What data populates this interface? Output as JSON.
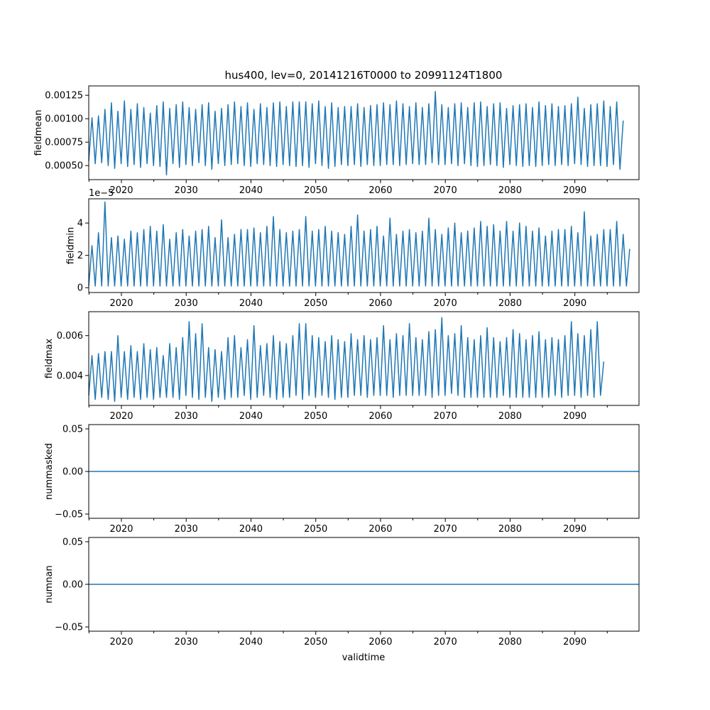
{
  "figure": {
    "title": "hus400, lev=0, 20141216T0000 to 20991124T1800",
    "xlabel": "validtime"
  },
  "colors": {
    "series": "#1f77b4"
  },
  "chart_data": [
    {
      "type": "line",
      "ylabel": "fieldmean",
      "scale_note": "",
      "xlim": [
        2014.96,
        2099.9
      ],
      "ylim": [
        0.00035,
        0.00135
      ],
      "x_ticks": [
        2020,
        2030,
        2040,
        2050,
        2060,
        2070,
        2080,
        2090
      ],
      "x_tick_labels": [
        "2020",
        "2030",
        "2040",
        "2050",
        "2060",
        "2070",
        "2080",
        "2090"
      ],
      "y_ticks": [
        0.0005,
        0.00075,
        0.001,
        0.00125
      ],
      "y_tick_labels": [
        "0.00050",
        "0.00075",
        "0.00100",
        "0.00125"
      ],
      "series": [
        {
          "x_start": 2014.96,
          "x_step": 0.5,
          "values_y": [
            0.00055,
            0.00101,
            0.00052,
            0.00103,
            0.00053,
            0.0011,
            0.0005,
            0.00117,
            0.00047,
            0.00108,
            0.00052,
            0.00119,
            0.00049,
            0.0011,
            0.00051,
            0.00116,
            0.00048,
            0.00112,
            0.00052,
            0.00106,
            0.0005,
            0.00114,
            0.00049,
            0.00118,
            0.0004,
            0.00111,
            0.00052,
            0.00115,
            0.00048,
            0.00118,
            0.00051,
            0.00112,
            0.0005,
            0.0011,
            0.00053,
            0.00115,
            0.0005,
            0.00117,
            0.00046,
            0.00108,
            0.00052,
            0.00111,
            0.0005,
            0.00115,
            0.00051,
            0.00118,
            0.00052,
            0.00113,
            0.0005,
            0.00117,
            0.00049,
            0.0011,
            0.00052,
            0.00116,
            0.00051,
            0.00112,
            0.0005,
            0.00117,
            0.00049,
            0.00118,
            0.00051,
            0.00113,
            0.0005,
            0.00118,
            0.00049,
            0.00118,
            0.0005,
            0.00118,
            0.00048,
            0.00116,
            0.00052,
            0.00119,
            0.0005,
            0.00113,
            0.00047,
            0.00117,
            0.00049,
            0.00112,
            0.00051,
            0.00113,
            0.0005,
            0.00113,
            0.00051,
            0.00116,
            0.00049,
            0.00112,
            0.00051,
            0.00114,
            0.0005,
            0.00115,
            0.0005,
            0.00117,
            0.00051,
            0.00115,
            0.00051,
            0.00119,
            0.0005,
            0.00116,
            0.00051,
            0.00113,
            0.00052,
            0.00117,
            0.00051,
            0.00112,
            0.00051,
            0.00116,
            0.00053,
            0.00129,
            0.00051,
            0.00115,
            0.00051,
            0.00112,
            0.00052,
            0.00116,
            0.0005,
            0.00117,
            0.00052,
            0.00112,
            0.0005,
            0.00117,
            0.00049,
            0.00118,
            0.0005,
            0.00113,
            0.00051,
            0.00116,
            0.0005,
            0.00117,
            0.00048,
            0.00111,
            0.00051,
            0.00114,
            0.0005,
            0.00115,
            0.00049,
            0.00116,
            0.0005,
            0.00112,
            0.00049,
            0.00118,
            0.0005,
            0.00114,
            0.00051,
            0.00116,
            0.0005,
            0.00113,
            0.00051,
            0.00114,
            0.0005,
            0.00116,
            0.00052,
            0.00123,
            0.00051,
            0.00111,
            0.00049,
            0.00115,
            0.0005,
            0.00116,
            0.0005,
            0.00119,
            0.00049,
            0.00113,
            0.00051,
            0.00118,
            0.00046,
            0.00098
          ]
        }
      ]
    },
    {
      "type": "line",
      "ylabel": "fieldmin",
      "scale_note": "1e−5",
      "xlim": [
        2014.96,
        2099.9
      ],
      "ylim": [
        -0.3,
        5.5
      ],
      "x_ticks": [
        2020,
        2030,
        2040,
        2050,
        2060,
        2070,
        2080,
        2090
      ],
      "x_tick_labels": [
        "2020",
        "2030",
        "2040",
        "2050",
        "2060",
        "2070",
        "2080",
        "2090"
      ],
      "y_ticks": [
        0,
        2,
        4
      ],
      "y_tick_labels": [
        "0",
        "2",
        "4"
      ],
      "series": [
        {
          "x_start": 2014.96,
          "x_step": 0.5,
          "values_y": [
            0.1,
            2.6,
            0.1,
            3.4,
            0.1,
            5.3,
            0.1,
            3.1,
            0.1,
            3.2,
            0.1,
            3.0,
            0.1,
            3.5,
            0.1,
            3.4,
            0.1,
            3.6,
            0.1,
            3.8,
            0.1,
            3.5,
            0.1,
            3.9,
            0.1,
            3.0,
            0.1,
            3.4,
            0.1,
            3.6,
            0.1,
            3.2,
            0.1,
            3.5,
            0.1,
            3.6,
            0.1,
            3.8,
            0.1,
            3.1,
            0.1,
            4.2,
            0.1,
            3.1,
            0.1,
            3.3,
            0.1,
            3.6,
            0.1,
            3.6,
            0.1,
            3.7,
            0.1,
            3.4,
            0.1,
            3.8,
            0.1,
            4.4,
            0.1,
            3.6,
            0.1,
            3.4,
            0.1,
            3.5,
            0.1,
            3.6,
            0.1,
            4.4,
            0.1,
            3.5,
            0.1,
            3.6,
            0.1,
            3.8,
            0.1,
            3.5,
            0.1,
            3.4,
            0.1,
            3.3,
            0.1,
            3.8,
            0.1,
            4.5,
            0.1,
            3.5,
            0.1,
            3.6,
            0.1,
            3.8,
            0.1,
            3.2,
            0.1,
            4.3,
            0.1,
            3.3,
            0.1,
            3.5,
            0.1,
            3.6,
            0.1,
            3.4,
            0.1,
            3.5,
            0.1,
            4.3,
            0.1,
            3.6,
            0.1,
            3.3,
            0.1,
            3.7,
            0.1,
            4.0,
            0.1,
            3.4,
            0.1,
            3.5,
            0.1,
            3.7,
            0.1,
            4.1,
            0.1,
            3.8,
            0.1,
            3.9,
            0.1,
            3.5,
            0.1,
            4.1,
            0.1,
            3.5,
            0.1,
            4.0,
            0.1,
            3.8,
            0.1,
            3.5,
            0.1,
            3.7,
            0.1,
            3.2,
            0.1,
            3.5,
            0.1,
            3.6,
            0.1,
            3.6,
            0.1,
            3.8,
            0.1,
            3.4,
            0.1,
            4.7,
            0.1,
            3.2,
            0.1,
            3.3,
            0.1,
            3.6,
            0.1,
            3.6,
            0.1,
            4.1,
            0.1,
            3.3,
            0.1,
            2.4
          ]
        }
      ]
    },
    {
      "type": "line",
      "ylabel": "fieldmax",
      "scale_note": "",
      "xlim": [
        2014.96,
        2099.9
      ],
      "ylim": [
        0.0025,
        0.0072
      ],
      "x_ticks": [
        2020,
        2030,
        2040,
        2050,
        2060,
        2070,
        2080,
        2090
      ],
      "x_tick_labels": [
        "2020",
        "2030",
        "2040",
        "2050",
        "2060",
        "2070",
        "2080",
        "2090"
      ],
      "y_ticks": [
        0.004,
        0.006
      ],
      "y_tick_labels": [
        "0.004",
        "0.006"
      ],
      "series": [
        {
          "x_start": 2014.96,
          "x_step": 0.5,
          "values_y": [
            0.003,
            0.005,
            0.0028,
            0.0051,
            0.0029,
            0.0052,
            0.0028,
            0.0052,
            0.0027,
            0.006,
            0.0029,
            0.0052,
            0.0028,
            0.0055,
            0.0029,
            0.0052,
            0.0028,
            0.0056,
            0.0029,
            0.0053,
            0.0028,
            0.0054,
            0.0029,
            0.005,
            0.0029,
            0.0056,
            0.0029,
            0.0054,
            0.0028,
            0.0059,
            0.003,
            0.0067,
            0.0029,
            0.0061,
            0.0028,
            0.0066,
            0.0029,
            0.0054,
            0.0027,
            0.0053,
            0.0029,
            0.0052,
            0.0028,
            0.0059,
            0.0029,
            0.006,
            0.0029,
            0.0054,
            0.003,
            0.0058,
            0.0028,
            0.0065,
            0.0029,
            0.0055,
            0.003,
            0.0056,
            0.0029,
            0.006,
            0.0028,
            0.0057,
            0.0029,
            0.0056,
            0.0029,
            0.006,
            0.003,
            0.0066,
            0.0028,
            0.0066,
            0.003,
            0.006,
            0.0029,
            0.0059,
            0.003,
            0.0057,
            0.0029,
            0.006,
            0.0028,
            0.0058,
            0.0029,
            0.0057,
            0.0029,
            0.0061,
            0.003,
            0.0058,
            0.003,
            0.006,
            0.0029,
            0.0058,
            0.003,
            0.0059,
            0.003,
            0.0065,
            0.003,
            0.0058,
            0.0029,
            0.0061,
            0.003,
            0.006,
            0.003,
            0.0066,
            0.003,
            0.0059,
            0.003,
            0.0058,
            0.003,
            0.0062,
            0.0029,
            0.0063,
            0.003,
            0.0069,
            0.003,
            0.006,
            0.0031,
            0.0061,
            0.003,
            0.0065,
            0.0029,
            0.0059,
            0.0029,
            0.0058,
            0.0029,
            0.006,
            0.0029,
            0.0064,
            0.0029,
            0.0059,
            0.0029,
            0.0057,
            0.003,
            0.0059,
            0.0029,
            0.0063,
            0.0029,
            0.0061,
            0.0029,
            0.0058,
            0.0029,
            0.006,
            0.0029,
            0.0062,
            0.0029,
            0.0058,
            0.0029,
            0.0059,
            0.003,
            0.0058,
            0.0029,
            0.006,
            0.003,
            0.0067,
            0.003,
            0.0061,
            0.0029,
            0.006,
            0.003,
            0.0063,
            0.0029,
            0.0067,
            0.003,
            0.0047
          ]
        }
      ]
    },
    {
      "type": "line",
      "ylabel": "nummasked",
      "scale_note": "",
      "xlim": [
        2014.96,
        2099.9
      ],
      "ylim": [
        -0.055,
        0.055
      ],
      "x_ticks": [
        2020,
        2030,
        2040,
        2050,
        2060,
        2070,
        2080,
        2090
      ],
      "x_tick_labels": [
        "2020",
        "2030",
        "2040",
        "2050",
        "2060",
        "2070",
        "2080",
        "2090"
      ],
      "y_ticks": [
        -0.05,
        0.0,
        0.05
      ],
      "y_tick_labels": [
        "−0.05",
        "0.00",
        "0.05"
      ],
      "series": [
        {
          "x": [
            2014.96,
            2099.9
          ],
          "y": [
            0,
            0
          ]
        }
      ]
    },
    {
      "type": "line",
      "ylabel": "numnan",
      "scale_note": "",
      "xlim": [
        2014.96,
        2099.9
      ],
      "ylim": [
        -0.055,
        0.055
      ],
      "x_ticks": [
        2020,
        2030,
        2040,
        2050,
        2060,
        2070,
        2080,
        2090
      ],
      "x_tick_labels": [
        "2020",
        "2030",
        "2040",
        "2050",
        "2060",
        "2070",
        "2080",
        "2090"
      ],
      "y_ticks": [
        -0.05,
        0.0,
        0.05
      ],
      "y_tick_labels": [
        "−0.05",
        "0.00",
        "0.05"
      ],
      "series": [
        {
          "x": [
            2014.96,
            2099.9
          ],
          "y": [
            0,
            0
          ]
        }
      ]
    }
  ]
}
